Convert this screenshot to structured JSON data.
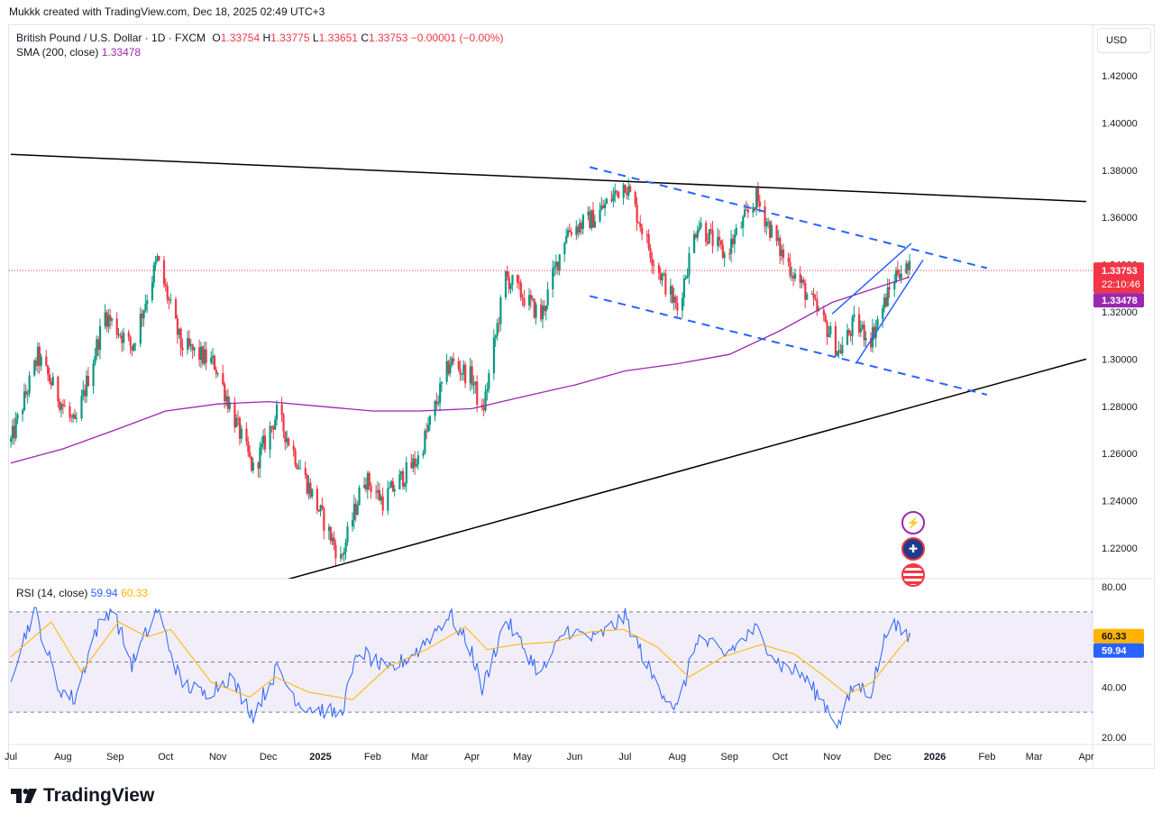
{
  "header": {
    "credit": "Mukkk created with TradingView.com, Dec 18, 2025 02:49 UTC+3"
  },
  "legend": {
    "symbol": "British Pound / U.S. Dollar · 1D · FXCM",
    "o_label": "O",
    "o_value": "1.33754",
    "h_label": "H",
    "h_value": "1.33775",
    "l_label": "L",
    "l_value": "1.33651",
    "c_label": "C",
    "c_value": "1.33753",
    "change": "−0.00001 (−0.00%)",
    "sma_label": "SMA (200, close)",
    "sma_value": "1.33478",
    "rsi_label": "RSI (14, close)",
    "rsi_value": "59.94",
    "rsi_ma_value": "60.33"
  },
  "currency_button": "USD",
  "price_tags": {
    "last": "1.33753",
    "countdown": "22:10:46",
    "sma": "1.33478",
    "rsi_ma": "60.33",
    "rsi": "59.94"
  },
  "brand": "TradingView",
  "colors": {
    "up": "#089981",
    "down": "#f23645",
    "sma": "#9c27b0",
    "rsi": "#2962ff",
    "rsi_ma": "#ffb300",
    "channel": "#2962ff",
    "trendline": "#000000"
  },
  "icons": [
    "lightning-icon",
    "uk-flag-icon",
    "us-flag-icon"
  ],
  "chart_data": [
    {
      "type": "candlestick",
      "title": "British Pound / U.S. Dollar · 1D · FXCM",
      "y_axis": {
        "ticks": [
          "1.42000",
          "1.40000",
          "1.38000",
          "1.36000",
          "1.34000",
          "1.32000",
          "1.30000",
          "1.28000",
          "1.26000",
          "1.24000",
          "1.22000"
        ],
        "ylim": [
          1.207,
          1.436
        ]
      },
      "x_axis": {
        "ticks": [
          "Jul",
          "Aug",
          "Sep",
          "Oct",
          "Nov",
          "Dec",
          "2025",
          "Feb",
          "Mar",
          "Apr",
          "May",
          "Jun",
          "Jul",
          "Aug",
          "Sep",
          "Oct",
          "Nov",
          "Dec",
          "2026",
          "Feb",
          "Mar",
          "Apr"
        ]
      },
      "price_path": [
        [
          "2024-07-01",
          1.265
        ],
        [
          "2024-07-17",
          1.301
        ],
        [
          "2024-07-30",
          1.283
        ],
        [
          "2024-08-08",
          1.271
        ],
        [
          "2024-08-26",
          1.319
        ],
        [
          "2024-09-11",
          1.305
        ],
        [
          "2024-09-26",
          1.342
        ],
        [
          "2024-10-10",
          1.306
        ],
        [
          "2024-10-30",
          1.298
        ],
        [
          "2024-11-22",
          1.253
        ],
        [
          "2024-12-06",
          1.277
        ],
        [
          "2024-12-20",
          1.254
        ],
        [
          "2025-01-13",
          1.215
        ],
        [
          "2025-01-27",
          1.25
        ],
        [
          "2025-02-07",
          1.24
        ],
        [
          "2025-02-28",
          1.258
        ],
        [
          "2025-03-19",
          1.299
        ],
        [
          "2025-04-01",
          1.292
        ],
        [
          "2025-04-07",
          1.276
        ],
        [
          "2025-04-21",
          1.335
        ],
        [
          "2025-05-12",
          1.318
        ],
        [
          "2025-05-27",
          1.354
        ],
        [
          "2025-06-13",
          1.36
        ],
        [
          "2025-07-01",
          1.375
        ],
        [
          "2025-07-18",
          1.342
        ],
        [
          "2025-08-01",
          1.321
        ],
        [
          "2025-08-13",
          1.358
        ],
        [
          "2025-08-29",
          1.344
        ],
        [
          "2025-09-17",
          1.368
        ],
        [
          "2025-10-01",
          1.346
        ],
        [
          "2025-10-14",
          1.331
        ],
        [
          "2025-10-29",
          1.313
        ],
        [
          "2025-11-05",
          1.303
        ],
        [
          "2025-11-14",
          1.315
        ],
        [
          "2025-11-24",
          1.309
        ],
        [
          "2025-12-10",
          1.338
        ],
        [
          "2025-12-17",
          1.3375
        ]
      ],
      "sma200": {
        "name": "SMA (200, close)",
        "last": 1.33478,
        "points": [
          [
            "2024-07-01",
            1.256
          ],
          [
            "2024-08-01",
            1.262
          ],
          [
            "2024-09-01",
            1.27
          ],
          [
            "2024-10-01",
            1.278
          ],
          [
            "2024-11-01",
            1.281
          ],
          [
            "2024-12-01",
            1.282
          ],
          [
            "2025-01-01",
            1.28
          ],
          [
            "2025-02-01",
            1.278
          ],
          [
            "2025-03-01",
            1.278
          ],
          [
            "2025-04-01",
            1.279
          ],
          [
            "2025-05-01",
            1.284
          ],
          [
            "2025-06-01",
            1.289
          ],
          [
            "2025-07-01",
            1.295
          ],
          [
            "2025-08-01",
            1.298
          ],
          [
            "2025-09-01",
            1.302
          ],
          [
            "2025-10-01",
            1.312
          ],
          [
            "2025-11-01",
            1.324
          ],
          [
            "2025-12-17",
            1.33478
          ]
        ]
      },
      "last_price": 1.33753,
      "drawings": {
        "upper_trendline": [
          [
            "2024-07-01",
            1.3867
          ],
          [
            "2026-04-01",
            1.3667
          ]
        ],
        "lower_trendline": [
          [
            "2024-12-01",
            1.2045
          ],
          [
            "2026-04-01",
            1.3
          ]
        ],
        "channel_upper": [
          [
            "2025-06-10",
            1.3813
          ],
          [
            "2026-02-01",
            1.3385
          ]
        ],
        "channel_lower": [
          [
            "2025-06-10",
            1.3267
          ],
          [
            "2026-02-01",
            1.2849
          ]
        ],
        "rising_wedge_upper": [
          [
            "2025-11-01",
            1.3191
          ],
          [
            "2025-12-18",
            1.349
          ]
        ],
        "rising_wedge_lower": [
          [
            "2025-11-15",
            1.298
          ],
          [
            "2025-12-25",
            1.342
          ]
        ]
      }
    },
    {
      "type": "line",
      "title": "RSI (14, close)",
      "y_axis": {
        "ticks": [
          "80.00",
          "40.00",
          "20.00"
        ],
        "ylim": [
          18,
          82
        ]
      },
      "band": [
        30,
        70
      ],
      "rsi_path": [
        [
          "2024-07-01",
          45
        ],
        [
          "2024-07-15",
          71
        ],
        [
          "2024-07-29",
          40
        ],
        [
          "2024-08-08",
          35
        ],
        [
          "2024-08-20",
          62
        ],
        [
          "2024-08-30",
          72
        ],
        [
          "2024-09-11",
          49
        ],
        [
          "2024-09-26",
          71
        ],
        [
          "2024-10-10",
          42
        ],
        [
          "2024-10-24",
          37
        ],
        [
          "2024-11-08",
          44
        ],
        [
          "2024-11-22",
          29
        ],
        [
          "2024-12-06",
          47
        ],
        [
          "2024-12-20",
          33
        ],
        [
          "2025-01-13",
          29
        ],
        [
          "2025-01-24",
          55
        ],
        [
          "2025-02-10",
          46
        ],
        [
          "2025-02-28",
          55
        ],
        [
          "2025-03-19",
          69
        ],
        [
          "2025-04-01",
          54
        ],
        [
          "2025-04-07",
          39
        ],
        [
          "2025-04-21",
          67
        ],
        [
          "2025-05-12",
          45
        ],
        [
          "2025-05-27",
          63
        ],
        [
          "2025-06-13",
          59
        ],
        [
          "2025-07-01",
          68
        ],
        [
          "2025-07-18",
          43
        ],
        [
          "2025-08-01",
          31
        ],
        [
          "2025-08-13",
          60
        ],
        [
          "2025-08-29",
          53
        ],
        [
          "2025-09-17",
          63
        ],
        [
          "2025-10-01",
          49
        ],
        [
          "2025-10-14",
          45
        ],
        [
          "2025-10-29",
          32
        ],
        [
          "2025-11-05",
          25
        ],
        [
          "2025-11-14",
          41
        ],
        [
          "2025-11-24",
          38
        ],
        [
          "2025-12-05",
          66
        ],
        [
          "2025-12-10",
          63
        ],
        [
          "2025-12-17",
          59.94
        ]
      ],
      "rsi_ma_path": [
        [
          "2024-07-01",
          52
        ],
        [
          "2024-07-25",
          66
        ],
        [
          "2024-08-12",
          46
        ],
        [
          "2024-09-03",
          66
        ],
        [
          "2024-09-20",
          60
        ],
        [
          "2024-10-04",
          63
        ],
        [
          "2024-10-28",
          42
        ],
        [
          "2024-11-20",
          36
        ],
        [
          "2024-12-05",
          44
        ],
        [
          "2024-12-25",
          38
        ],
        [
          "2025-01-20",
          35
        ],
        [
          "2025-02-10",
          48
        ],
        [
          "2025-03-05",
          55
        ],
        [
          "2025-03-28",
          64
        ],
        [
          "2025-04-10",
          55
        ],
        [
          "2025-04-28",
          57
        ],
        [
          "2025-05-20",
          58
        ],
        [
          "2025-06-10",
          62
        ],
        [
          "2025-06-30",
          63
        ],
        [
          "2025-07-20",
          56
        ],
        [
          "2025-08-08",
          44
        ],
        [
          "2025-08-28",
          52
        ],
        [
          "2025-09-20",
          57
        ],
        [
          "2025-10-10",
          53
        ],
        [
          "2025-10-28",
          44
        ],
        [
          "2025-11-10",
          37
        ],
        [
          "2025-11-25",
          42
        ],
        [
          "2025-12-08",
          53
        ],
        [
          "2025-12-17",
          60.33
        ]
      ]
    }
  ]
}
